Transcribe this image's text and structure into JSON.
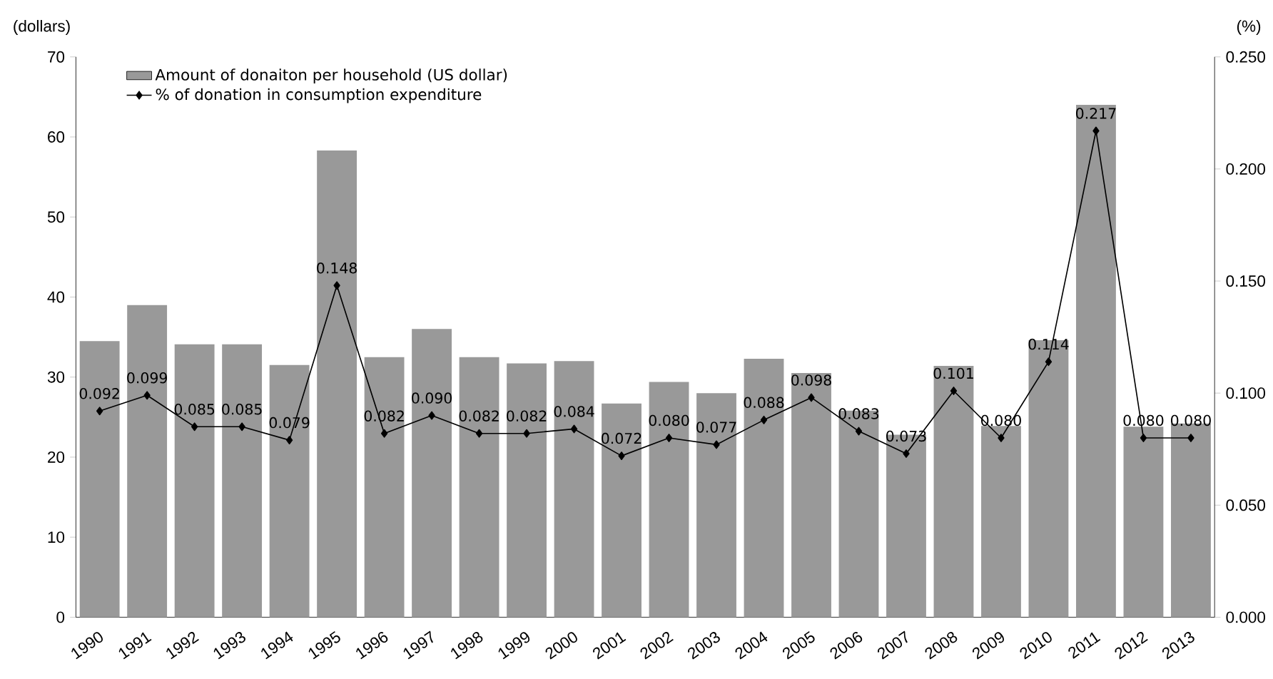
{
  "chart_data": {
    "type": "bar",
    "categories": [
      "1990",
      "1991",
      "1992",
      "1993",
      "1994",
      "1995",
      "1996",
      "1997",
      "1998",
      "1999",
      "2000",
      "2001",
      "2002",
      "2003",
      "2004",
      "2005",
      "2006",
      "2007",
      "2008",
      "2009",
      "2010",
      "2011",
      "2012",
      "2013"
    ],
    "series": [
      {
        "name": "Amount of donaiton per household (US dollar)",
        "color": "#999999",
        "values": [
          34.5,
          39.0,
          34.1,
          34.1,
          31.5,
          58.3,
          32.5,
          36.0,
          32.5,
          31.7,
          32.0,
          26.7,
          29.4,
          28.0,
          32.3,
          30.5,
          25.8,
          22.8,
          31.4,
          23.9,
          34.6,
          64.0,
          23.8,
          24.2
        ]
      },
      {
        "name": "% of donation in consumption expenditure",
        "type": "line",
        "axis": "y2",
        "color": "#000000",
        "marker": "diamond",
        "values": [
          0.092,
          0.099,
          0.085,
          0.085,
          0.079,
          0.148,
          0.082,
          0.09,
          0.082,
          0.082,
          0.084,
          0.072,
          0.08,
          0.077,
          0.088,
          0.098,
          0.083,
          0.073,
          0.101,
          0.08,
          0.114,
          0.217,
          0.08,
          0.08
        ],
        "value_labels": [
          "0.092",
          "0.099",
          "0.085",
          "0.085",
          "0.079",
          "0.148",
          "0.082",
          "0.090",
          "0.082",
          "0.082",
          "0.084",
          "0.072",
          "0.080",
          "0.077",
          "0.088",
          "0.098",
          "0.083",
          "0.073",
          "0.101",
          "0.080",
          "0.114",
          "0.217",
          "0.080",
          "0.080"
        ]
      }
    ],
    "ylabel": "(dollars)",
    "y2label": "(%)",
    "ylim": [
      0,
      70
    ],
    "yticks": [
      0,
      10,
      20,
      30,
      40,
      50,
      60,
      70
    ],
    "y2lim": [
      0,
      0.25
    ],
    "y2ticks": [
      {
        "value": 0,
        "label": "0.000"
      },
      {
        "value": 0.05,
        "label": "0.050"
      },
      {
        "value": 0.1,
        "label": "0.100"
      },
      {
        "value": 0.15,
        "label": "0.150"
      },
      {
        "value": 0.2,
        "label": "0.200"
      },
      {
        "value": 0.25,
        "label": "0.250"
      }
    ],
    "legend": "top left",
    "grid": false
  }
}
